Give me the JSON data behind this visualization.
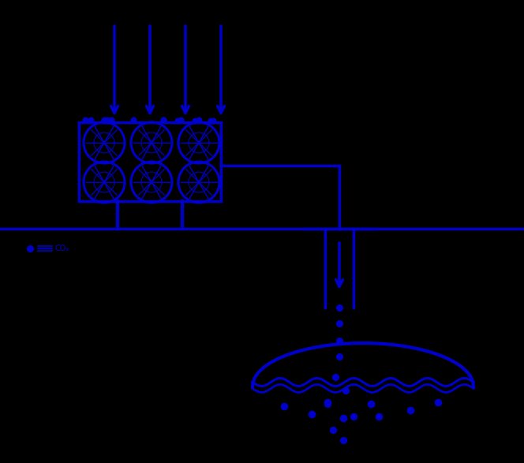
{
  "bg_color": "#000000",
  "line_color": "#0000CC",
  "fig_width": 6.64,
  "fig_height": 5.87,
  "dpi": 100,
  "legend_text": "CO₂"
}
